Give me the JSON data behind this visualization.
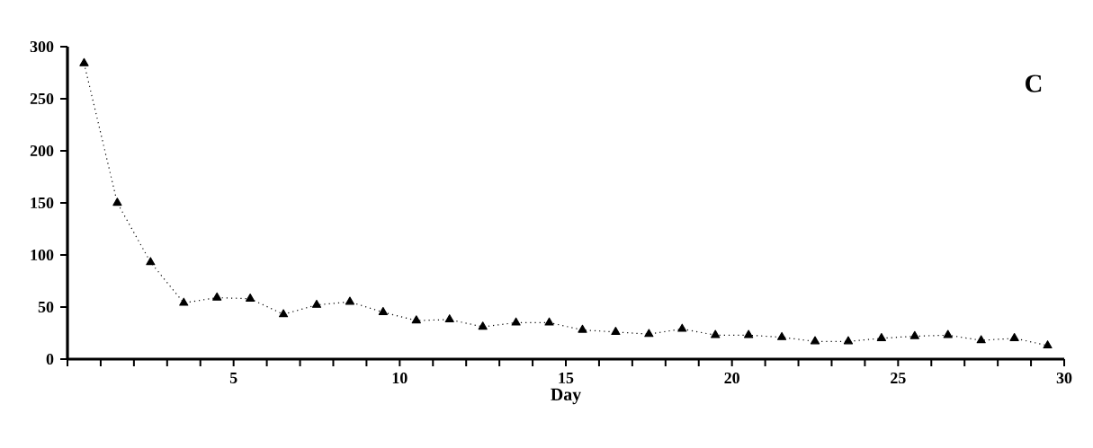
{
  "chart_data": {
    "type": "line",
    "xlabel": "Day",
    "annotations": [
      "C"
    ],
    "x": [
      0.5,
      1.5,
      2.5,
      3.5,
      4.5,
      5.5,
      6.5,
      7.5,
      8.5,
      9.5,
      10.5,
      11.5,
      12.5,
      13.5,
      14.5,
      15.5,
      16.5,
      17.5,
      18.5,
      19.5,
      20.5,
      21.5,
      22.5,
      23.5,
      24.5,
      25.5,
      26.5,
      27.5,
      28.5,
      29.5
    ],
    "values": [
      284,
      150,
      93,
      54,
      59,
      58,
      43,
      52,
      55,
      45,
      37,
      38,
      31,
      35,
      35,
      28,
      26,
      24,
      29,
      23,
      23,
      21,
      17,
      17,
      20,
      22,
      23,
      18,
      20,
      13
    ],
    "color": "#000000",
    "marker": "triangle",
    "line_style": "dotted",
    "xlim": [
      0,
      30
    ],
    "ylim": [
      0,
      300
    ],
    "xticks": [
      {
        "value": 0,
        "label": null
      },
      {
        "value": 1,
        "label": null
      },
      {
        "value": 2,
        "label": null
      },
      {
        "value": 3,
        "label": null
      },
      {
        "value": 4,
        "label": null
      },
      5,
      {
        "value": 6,
        "label": null
      },
      {
        "value": 7,
        "label": null
      },
      {
        "value": 8,
        "label": null
      },
      {
        "value": 9,
        "label": null
      },
      10,
      {
        "value": 11,
        "label": null
      },
      {
        "value": 12,
        "label": null
      },
      {
        "value": 13,
        "label": null
      },
      {
        "value": 14,
        "label": null
      },
      15,
      {
        "value": 16,
        "label": null
      },
      {
        "value": 17,
        "label": null
      },
      {
        "value": 18,
        "label": null
      },
      {
        "value": 19,
        "label": null
      },
      20,
      {
        "value": 21,
        "label": null
      },
      {
        "value": 22,
        "label": null
      },
      {
        "value": 23,
        "label": null
      },
      {
        "value": 24,
        "label": null
      },
      25,
      {
        "value": 26,
        "label": null
      },
      {
        "value": 27,
        "label": null
      },
      {
        "value": 28,
        "label": null
      },
      {
        "value": 29,
        "label": null
      },
      30
    ],
    "yticks": [
      0,
      50,
      100,
      150,
      200,
      250,
      300
    ],
    "grid": false
  }
}
